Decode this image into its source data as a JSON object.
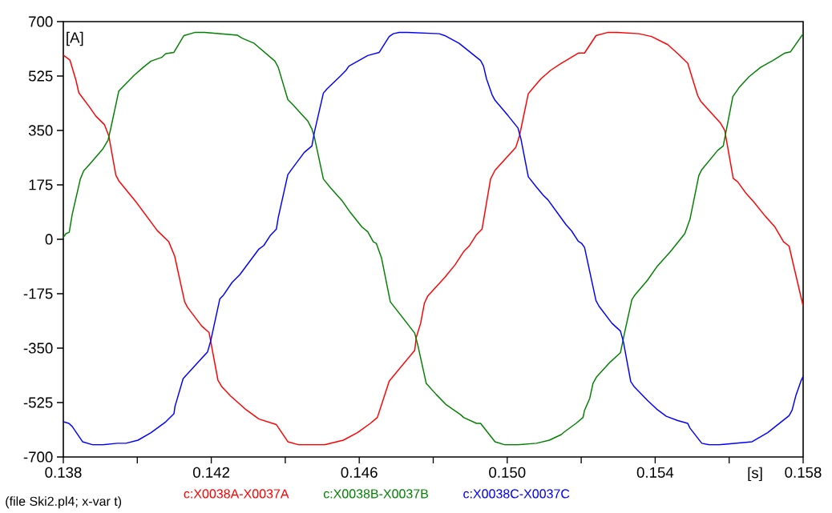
{
  "chart_data": {
    "type": "line",
    "xlabel": "[s]",
    "ylabel": "[A]",
    "annotations": [
      "(file Ski2.pl4; x-var t)"
    ],
    "xlim": [
      0.138,
      0.158
    ],
    "ylim": [
      -700,
      700
    ],
    "xticks": [
      0.138,
      {
        "value": 0.14,
        "label": null
      },
      0.142,
      {
        "value": 0.144,
        "label": null
      },
      0.146,
      {
        "value": 0.148,
        "label": null
      },
      {
        "value": 0.15,
        "label": "0.150"
      },
      {
        "value": 0.152,
        "label": null
      },
      0.154,
      {
        "value": 0.156,
        "label": null
      },
      0.158
    ],
    "yticks": [
      -700,
      -525,
      -350,
      -175,
      0,
      175,
      350,
      525,
      700
    ],
    "grid": false,
    "legend": "bottom",
    "line_style": "solid",
    "series": [
      {
        "name": "c:X0038A-X0037A",
        "color": "#ff0000",
        "x": [
          0.138,
          0.13818,
          0.13834,
          0.13842,
          0.13869,
          0.13888,
          0.13911,
          0.13923,
          0.13942,
          0.1395,
          0.13996,
          0.14054,
          0.14085,
          0.14101,
          0.14128,
          0.14136,
          0.14174,
          0.14194,
          0.14218,
          0.14229,
          0.14252,
          0.14294,
          0.14329,
          0.14376,
          0.14407,
          0.14437,
          0.14485,
          0.14506,
          0.14557,
          0.14595,
          0.1463,
          0.14649,
          0.14681,
          0.1475,
          0.14754,
          0.14766,
          0.14776,
          0.14785,
          0.14831,
          0.14859,
          0.14882,
          0.14897,
          0.14917,
          0.14932,
          0.14955,
          0.14967,
          0.15023,
          0.15033,
          0.15057,
          0.15068,
          0.15091,
          0.15117,
          0.15146,
          0.15159,
          0.15193,
          0.15209,
          0.1524,
          0.15271,
          0.15298,
          0.15356,
          0.1539,
          0.15434,
          0.15464,
          0.15488,
          0.15515,
          0.15523,
          0.15542,
          0.15577,
          0.15588,
          0.15611,
          0.15623,
          0.15646,
          0.15666,
          0.15697,
          0.15724,
          0.15747,
          0.15762,
          0.1577,
          0.158
        ],
        "values": [
          592,
          576,
          512,
          471,
          428,
          396,
          369,
          332,
          206,
          188,
          121,
          28,
          -8,
          -54,
          -201,
          -219,
          -279,
          -300,
          -453,
          -475,
          -504,
          -548,
          -578,
          -596,
          -651,
          -661,
          -661,
          -661,
          -646,
          -622,
          -592,
          -573,
          -456,
          -357,
          -316,
          -270,
          -206,
          -183,
          -123,
          -82,
          -40,
          -22,
          15,
          33,
          194,
          222,
          295,
          332,
          468,
          484,
          516,
          543,
          566,
          575,
          599,
          599,
          655,
          665,
          665,
          661,
          652,
          626,
          594,
          566,
          462,
          444,
          419,
          373,
          350,
          196,
          185,
          147,
          121,
          75,
          39,
          -8,
          -22,
          -63,
          -215
        ]
      },
      {
        "name": "c:X0038B-X0037B",
        "color": "#008000",
        "x": [
          0.138,
          0.13807,
          0.13816,
          0.13824,
          0.13846,
          0.13855,
          0.13873,
          0.13907,
          0.13921,
          0.13927,
          0.1395,
          0.13991,
          0.14016,
          0.14037,
          0.14066,
          0.14077,
          0.14099,
          0.14126,
          0.14155,
          0.14182,
          0.14271,
          0.14283,
          0.14316,
          0.14372,
          0.14381,
          0.14407,
          0.14418,
          0.14445,
          0.14461,
          0.14472,
          0.14479,
          0.14503,
          0.14522,
          0.14553,
          0.14576,
          0.14607,
          0.14623,
          0.14638,
          0.14646,
          0.1466,
          0.14684,
          0.14735,
          0.1475,
          0.14758,
          0.14781,
          0.14808,
          0.14835,
          0.14874,
          0.14882,
          0.14917,
          0.14928,
          0.14967,
          0.14994,
          0.15029,
          0.15079,
          0.15114,
          0.15146,
          0.15155,
          0.15186,
          0.15205,
          0.15209,
          0.15223,
          0.15232,
          0.15242,
          0.15279,
          0.15306,
          0.15317,
          0.15337,
          0.15344,
          0.15379,
          0.15406,
          0.15441,
          0.1548,
          0.15494,
          0.15518,
          0.15526,
          0.15569,
          0.15584,
          0.1561,
          0.15627,
          0.15654,
          0.15685,
          0.15718,
          0.15751,
          0.15766,
          0.158
        ],
        "values": [
          6,
          18,
          23,
          80,
          194,
          220,
          244,
          291,
          319,
          350,
          477,
          527,
          553,
          573,
          585,
          597,
          601,
          655,
          665,
          665,
          656,
          647,
          630,
          573,
          553,
          449,
          436,
          401,
          380,
          355,
          327,
          194,
          166,
          125,
          86,
          40,
          24,
          -8,
          -13,
          -59,
          -201,
          -279,
          -302,
          -339,
          -463,
          -499,
          -532,
          -564,
          -573,
          -592,
          -592,
          -651,
          -661,
          -661,
          -656,
          -646,
          -628,
          -619,
          -592,
          -573,
          -550,
          -512,
          -463,
          -442,
          -394,
          -365,
          -302,
          -194,
          -181,
          -132,
          -86,
          -40,
          18,
          64,
          205,
          224,
          286,
          300,
          459,
          488,
          523,
          553,
          575,
          599,
          603,
          661
        ]
      },
      {
        "name": "c:X0038C-X0037C",
        "color": "#0000ff",
        "x": [
          0.138,
          0.13815,
          0.13824,
          0.13852,
          0.1388,
          0.13907,
          0.13946,
          0.13969,
          0.14002,
          0.14037,
          0.14077,
          0.14099,
          0.14102,
          0.14124,
          0.14167,
          0.1419,
          0.14198,
          0.14223,
          0.14232,
          0.14256,
          0.14277,
          0.14329,
          0.14342,
          0.1436,
          0.14376,
          0.14381,
          0.14407,
          0.14418,
          0.14451,
          0.14472,
          0.14479,
          0.14503,
          0.14513,
          0.14549,
          0.14564,
          0.14572,
          0.14599,
          0.14623,
          0.14654,
          0.14681,
          0.14692,
          0.14708,
          0.14731,
          0.14816,
          0.14831,
          0.1487,
          0.14928,
          0.14936,
          0.14944,
          0.14959,
          0.14967,
          0.15002,
          0.15029,
          0.15037,
          0.15057,
          0.15079,
          0.15098,
          0.1511,
          0.15159,
          0.15174,
          0.15192,
          0.15201,
          0.15209,
          0.1524,
          0.15248,
          0.15283,
          0.15306,
          0.15314,
          0.15334,
          0.15344,
          0.15379,
          0.15406,
          0.1543,
          0.15461,
          0.15488,
          0.15494,
          0.15526,
          0.15546,
          0.15573,
          0.15662,
          0.15704,
          0.15762,
          0.1577,
          0.1578,
          0.15794,
          0.158
        ],
        "values": [
          -587,
          -592,
          -602,
          -651,
          -661,
          -661,
          -656,
          -656,
          -646,
          -622,
          -587,
          -561,
          -537,
          -448,
          -392,
          -362,
          -329,
          -192,
          -181,
          -139,
          -114,
          -31,
          -20,
          13,
          33,
          70,
          208,
          226,
          279,
          300,
          346,
          470,
          484,
          525,
          543,
          557,
          575,
          591,
          601,
          652,
          661,
          665,
          665,
          661,
          655,
          630,
          575,
          557,
          516,
          465,
          447,
          398,
          358,
          323,
          201,
          168,
          141,
          127,
          47,
          27,
          -6,
          -13,
          -26,
          -197,
          -215,
          -270,
          -295,
          -329,
          -458,
          -475,
          -518,
          -548,
          -569,
          -583,
          -592,
          -607,
          -656,
          -661,
          -661,
          -651,
          -622,
          -567,
          -550,
          -504,
          -456,
          -440
        ]
      }
    ]
  }
}
